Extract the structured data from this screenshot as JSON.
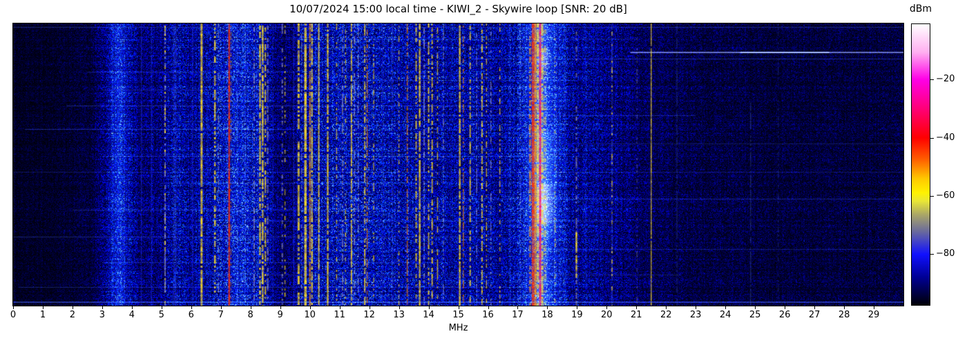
{
  "chart_data": {
    "type": "heatmap",
    "title": "10/07/2024 15:00 local time - KIWI_2 - Skywire loop [SNR: 20 dB]",
    "xlabel": "MHz",
    "x_range": [
      0,
      30
    ],
    "x_ticks": [
      0,
      1,
      2,
      3,
      4,
      5,
      6,
      7,
      8,
      9,
      10,
      11,
      12,
      13,
      14,
      15,
      16,
      17,
      18,
      19,
      20,
      21,
      22,
      23,
      24,
      25,
      26,
      27,
      28,
      29
    ],
    "grid": false,
    "colorbar": {
      "label": "dBm",
      "position": "right",
      "scale_top_dbm": -1,
      "scale_bottom_dbm": -97.5,
      "tick_values": [
        -20,
        -40,
        -60,
        -80
      ],
      "tick_labels": [
        "−20",
        "−40",
        "−60",
        "−80"
      ],
      "gradient_stops": [
        [
          0,
          "#ffffff"
        ],
        [
          3,
          "#ffe6fb"
        ],
        [
          10,
          "#ffaff0"
        ],
        [
          19.7,
          "#ff00e6"
        ],
        [
          30,
          "#ff0078"
        ],
        [
          40.5,
          "#ff0000"
        ],
        [
          48,
          "#ff5c00"
        ],
        [
          55,
          "#ffc800"
        ],
        [
          60,
          "#fff200"
        ],
        [
          63,
          "#e8e636"
        ],
        [
          68,
          "#a8a468"
        ],
        [
          74,
          "#68689e"
        ],
        [
          82,
          "#1010ff"
        ],
        [
          90,
          "#000096"
        ],
        [
          100,
          "#000006"
        ]
      ]
    },
    "signal_palette": {
      "yellow": "#ffdf26",
      "orange": "#ff9000",
      "red": "#ff3000",
      "crimson": "#ff1060",
      "gray": "#a8a8c4",
      "blue": "#2838ee",
      "ltblue": "#5578ff"
    },
    "noise_profile": [
      [
        0,
        0.06
      ],
      [
        1.5,
        0.07
      ],
      [
        2.6,
        0.1
      ],
      [
        3.1,
        0.22
      ],
      [
        3.55,
        0.42
      ],
      [
        3.9,
        0.3
      ],
      [
        4.3,
        0.18
      ],
      [
        5.0,
        0.22
      ],
      [
        5.4,
        0.3
      ],
      [
        6.0,
        0.26
      ],
      [
        6.6,
        0.3
      ],
      [
        7.0,
        0.4
      ],
      [
        7.5,
        0.42
      ],
      [
        8.2,
        0.38
      ],
      [
        8.8,
        0.2
      ],
      [
        9.3,
        0.16
      ],
      [
        9.8,
        0.32
      ],
      [
        10.3,
        0.38
      ],
      [
        11.0,
        0.35
      ],
      [
        11.6,
        0.38
      ],
      [
        12.3,
        0.33
      ],
      [
        13.0,
        0.36
      ],
      [
        13.6,
        0.32
      ],
      [
        14.2,
        0.3
      ],
      [
        14.9,
        0.32
      ],
      [
        15.6,
        0.3
      ],
      [
        16.2,
        0.28
      ],
      [
        16.8,
        0.34
      ],
      [
        17.2,
        0.42
      ],
      [
        17.6,
        0.5
      ],
      [
        18.0,
        0.52
      ],
      [
        18.3,
        0.4
      ],
      [
        18.8,
        0.26
      ],
      [
        19.5,
        0.24
      ],
      [
        20.2,
        0.22
      ],
      [
        20.9,
        0.16
      ],
      [
        21.6,
        0.14
      ],
      [
        22.5,
        0.12
      ],
      [
        24.0,
        0.11
      ],
      [
        26.0,
        0.1
      ],
      [
        28.0,
        0.1
      ],
      [
        30,
        0.1
      ]
    ],
    "glows": [
      {
        "f0": 3.15,
        "f1": 4.0,
        "p": 3.55,
        "col": "#2040ff",
        "a": 0.3,
        "y0": 0,
        "y1": 1
      },
      {
        "f0": 6.9,
        "f1": 8.6,
        "p": 7.5,
        "col": "#1830dd",
        "a": 0.15,
        "y0": 0,
        "y1": 1
      },
      {
        "f0": 17.0,
        "f1": 18.7,
        "p": 17.78,
        "col": "#1e46ff",
        "a": 0.5,
        "y0": 0,
        "y1": 1
      },
      {
        "f0": 17.3,
        "f1": 18.45,
        "p": 17.8,
        "col": "#507fff",
        "a": 0.4,
        "y0": 0.38,
        "y1": 0.76
      },
      {
        "f0": 17.45,
        "f1": 18.05,
        "p": 17.75,
        "col": "#ffbe28",
        "a": 0.2,
        "y0": 0,
        "y1": 1
      },
      {
        "f0": 17.55,
        "f1": 18.3,
        "p": 17.85,
        "col": "#ffd23c",
        "a": 0.4,
        "y0": 0.57,
        "y1": 0.71
      },
      {
        "f0": 17.55,
        "f1": 18.15,
        "p": 17.85,
        "col": "#ffd23c",
        "a": 0.3,
        "y0": 0.09,
        "y1": 0.16
      }
    ],
    "signals": [
      {
        "f": 4.32,
        "c": "blue",
        "w": 1.5,
        "s": 0.95,
        "a": 0.5
      },
      {
        "f": 4.66,
        "c": "blue",
        "w": 1.5,
        "s": 0.9,
        "a": 0.45
      },
      {
        "f": 5.12,
        "c": "gray",
        "w": 2,
        "s": 0.5,
        "a": 0.8
      },
      {
        "f": 5.12,
        "c": "yellow",
        "w": 2,
        "s": 0.2,
        "a": 0.85
      },
      {
        "f": 5.45,
        "c": "ltblue",
        "w": 6,
        "s": 0.9,
        "a": 0.2
      },
      {
        "f": 6.05,
        "c": "blue",
        "w": 1.5,
        "s": 0.95,
        "a": 0.5
      },
      {
        "f": 6.35,
        "c": "yellow",
        "w": 3,
        "s": 0.97,
        "a": 0.95
      },
      {
        "f": 6.55,
        "c": "blue",
        "w": 1.5,
        "s": 0.8,
        "a": 0.4
      },
      {
        "f": 6.8,
        "c": "yellow",
        "w": 2.5,
        "s": 0.55,
        "a": 0.9
      },
      {
        "f": 6.92,
        "c": "gray",
        "w": 1.5,
        "s": 0.4,
        "a": 0.7
      },
      {
        "f": 7.28,
        "c": "red",
        "w": 2.5,
        "s": 1,
        "a": 0.95
      },
      {
        "f": 7.34,
        "c": "orange",
        "w": 1.5,
        "s": 0.45,
        "a": 0.6
      },
      {
        "f": 7.56,
        "c": "blue",
        "w": 1.5,
        "s": 0.75,
        "a": 0.45
      },
      {
        "f": 7.82,
        "c": "ltblue",
        "w": 2,
        "s": 0.6,
        "a": 0.3
      },
      {
        "f": 8.12,
        "c": "gray",
        "w": 2,
        "s": 0.5,
        "a": 0.7
      },
      {
        "f": 8.32,
        "c": "yellow",
        "w": 2.5,
        "s": 0.75,
        "a": 0.9
      },
      {
        "f": 8.41,
        "c": "yellow",
        "w": 2.5,
        "s": 0.85,
        "a": 0.95
      },
      {
        "f": 8.5,
        "c": "yellow",
        "w": 2,
        "s": 0.55,
        "a": 0.9
      },
      {
        "f": 8.58,
        "c": "gray",
        "w": 2,
        "s": 0.5,
        "a": 0.7
      },
      {
        "f": 8.75,
        "c": "blue",
        "w": 1.5,
        "s": 0.75,
        "a": 0.4
      },
      {
        "f": 9.07,
        "c": "gray",
        "w": 2,
        "s": 0.45,
        "a": 0.7
      },
      {
        "f": 9.16,
        "c": "yellow",
        "w": 1.5,
        "s": 0.3,
        "a": 0.85
      },
      {
        "f": 9.45,
        "c": "blue",
        "w": 1.5,
        "s": 0.85,
        "a": 0.5
      },
      {
        "f": 9.62,
        "c": "yellow",
        "w": 3,
        "s": 0.7,
        "a": 0.9
      },
      {
        "f": 9.72,
        "c": "gray",
        "w": 1.5,
        "s": 0.5,
        "a": 0.7
      },
      {
        "f": 9.85,
        "c": "yellow",
        "w": 3.5,
        "s": 0.92,
        "a": 0.95
      },
      {
        "f": 10.0,
        "c": "orange",
        "w": 2,
        "s": 0.9,
        "a": 0.9
      },
      {
        "f": 10.07,
        "c": "yellow",
        "w": 2.5,
        "s": 0.85,
        "a": 0.9
      },
      {
        "f": 10.3,
        "c": "yellow",
        "w": 2,
        "s": 0.9,
        "a": 0.9
      },
      {
        "f": 10.6,
        "c": "yellow",
        "w": 2.5,
        "s": 0.9,
        "a": 0.9
      },
      {
        "f": 10.9,
        "c": "yellow",
        "w": 1.5,
        "s": 0.4,
        "a": 0.85
      },
      {
        "f": 11.1,
        "c": "gray",
        "w": 2,
        "s": 0.55,
        "a": 0.7
      },
      {
        "f": 11.2,
        "c": "yellow",
        "w": 1.5,
        "s": 0.35,
        "a": 0.85
      },
      {
        "f": 11.4,
        "c": "yellow",
        "w": 2,
        "s": 0.8,
        "a": 0.9
      },
      {
        "f": 11.5,
        "c": "gray",
        "w": 2,
        "s": 0.5,
        "a": 0.7
      },
      {
        "f": 11.63,
        "c": "gray",
        "w": 1.5,
        "s": 0.5,
        "a": 0.7
      },
      {
        "f": 11.85,
        "c": "yellow",
        "w": 2,
        "s": 0.6,
        "a": 0.9
      },
      {
        "f": 11.93,
        "c": "orange",
        "w": 1.5,
        "s": 0.7,
        "a": 0.85
      },
      {
        "f": 12.15,
        "c": "yellow",
        "w": 1.5,
        "s": 0.35,
        "a": 0.85
      },
      {
        "f": 12.45,
        "c": "blue",
        "w": 1.5,
        "s": 0.85,
        "a": 0.45
      },
      {
        "f": 12.78,
        "c": "ltblue",
        "w": 3,
        "s": 0.7,
        "a": 0.3
      },
      {
        "f": 13.0,
        "c": "yellow",
        "w": 1.5,
        "s": 0.3,
        "a": 0.8
      },
      {
        "f": 13.28,
        "c": "orange",
        "w": 1.5,
        "s": 0.75,
        "a": 0.85
      },
      {
        "f": 13.58,
        "c": "yellow",
        "w": 2,
        "s": 0.55,
        "a": 0.9
      },
      {
        "f": 13.7,
        "c": "yellow",
        "w": 2.5,
        "s": 0.9,
        "a": 0.9
      },
      {
        "f": 13.85,
        "c": "gray",
        "w": 2,
        "s": 0.5,
        "a": 0.7
      },
      {
        "f": 14.0,
        "c": "yellow",
        "w": 2,
        "s": 0.55,
        "a": 0.9
      },
      {
        "f": 14.12,
        "c": "yellow",
        "w": 2,
        "s": 0.6,
        "a": 0.9
      },
      {
        "f": 14.3,
        "c": "yellow",
        "w": 1.5,
        "s": 0.45,
        "a": 0.85
      },
      {
        "f": 14.5,
        "c": "gray",
        "w": 1.5,
        "s": 0.4,
        "a": 0.7
      },
      {
        "f": 14.75,
        "c": "blue",
        "w": 1.5,
        "s": 0.75,
        "a": 0.4
      },
      {
        "f": 15.05,
        "c": "yellow",
        "w": 2.5,
        "s": 0.85,
        "a": 0.9
      },
      {
        "f": 15.17,
        "c": "orange",
        "w": 1.5,
        "s": 0.6,
        "a": 0.8
      },
      {
        "f": 15.4,
        "c": "yellow",
        "w": 2,
        "s": 0.6,
        "a": 0.9
      },
      {
        "f": 15.62,
        "c": "gray",
        "w": 1.5,
        "s": 0.5,
        "a": 0.7
      },
      {
        "f": 15.8,
        "c": "yellow",
        "w": 2,
        "s": 0.65,
        "a": 0.9
      },
      {
        "f": 15.95,
        "c": "yellow",
        "w": 1.5,
        "s": 0.4,
        "a": 0.85
      },
      {
        "f": 16.1,
        "c": "gray",
        "w": 1.5,
        "s": 0.35,
        "a": 0.7
      },
      {
        "f": 16.4,
        "c": "yellow",
        "w": 1.5,
        "s": 0.45,
        "a": 0.85
      },
      {
        "f": 16.75,
        "c": "blue",
        "w": 1.5,
        "s": 0.7,
        "a": 0.4
      },
      {
        "f": 17.1,
        "c": "ltblue",
        "w": 2,
        "s": 0.6,
        "a": 0.35
      },
      {
        "f": 17.42,
        "c": "orange",
        "w": 3,
        "s": 0.55,
        "a": 0.7
      },
      {
        "f": 17.52,
        "c": "red",
        "w": 4,
        "s": 1,
        "a": 0.95
      },
      {
        "f": 17.6,
        "c": "orange",
        "w": 3,
        "s": 0.95,
        "a": 0.9
      },
      {
        "f": 17.68,
        "c": "yellow",
        "w": 3,
        "s": 0.8,
        "a": 0.85
      },
      {
        "f": 17.76,
        "c": "crimson",
        "w": 3,
        "s": 1,
        "a": 1
      },
      {
        "f": 17.83,
        "c": "yellow",
        "w": 3,
        "s": 0.7,
        "a": 0.8
      },
      {
        "f": 17.92,
        "c": "yellow",
        "w": 4,
        "s": 0.45,
        "a": 0.5
      },
      {
        "f": 18.26,
        "c": "yellow",
        "w": 1.5,
        "s": 0.2,
        "a": 0.8
      },
      {
        "f": 18.6,
        "c": "blue",
        "w": 1.5,
        "s": 0.6,
        "a": 0.4
      },
      {
        "f": 18.98,
        "c": "gray",
        "w": 2,
        "s": 0.5,
        "a": 0.7
      },
      {
        "f": 18.98,
        "c": "yellow",
        "w": 2.5,
        "s": 0.9,
        "a": 0.95,
        "y0": 0.74,
        "y1": 0.9
      },
      {
        "f": 19.3,
        "c": "blue",
        "w": 1.5,
        "s": 0.5,
        "a": 0.35
      },
      {
        "f": 20.18,
        "c": "ltblue",
        "w": 2.5,
        "s": 0.8,
        "a": 0.3
      },
      {
        "f": 20.18,
        "c": "yellow",
        "w": 1.5,
        "s": 0.25,
        "a": 0.85
      },
      {
        "f": 21.02,
        "c": "gray",
        "w": 1.5,
        "s": 0.3,
        "a": 0.4
      },
      {
        "f": 21.5,
        "c": "yellow",
        "w": 1.5,
        "s": 0.97,
        "a": 0.85
      },
      {
        "f": 22.37,
        "c": "ltblue",
        "w": 1.5,
        "s": 0.8,
        "a": 0.3
      },
      {
        "f": 23.2,
        "c": "blue",
        "w": 1,
        "s": 0.3,
        "a": 0.25
      },
      {
        "f": 24.85,
        "c": "ltblue",
        "w": 1.5,
        "s": 0.75,
        "a": 0.35,
        "y0": 0.28
      },
      {
        "f": 25.78,
        "c": "ltblue",
        "w": 1.5,
        "s": 0.5,
        "a": 0.25
      },
      {
        "f": 27.5,
        "c": "blue",
        "w": 1,
        "s": 0.3,
        "a": 0.2
      },
      {
        "f": 29.2,
        "c": "blue",
        "w": 1,
        "s": 0.25,
        "a": 0.2
      }
    ],
    "time_streaks": [
      {
        "y": 0.012,
        "f0": 0,
        "f1": 30,
        "a": 0.3
      },
      {
        "y": 0.055,
        "f0": 9,
        "f1": 21,
        "a": 0.2
      },
      {
        "y": 0.1,
        "f0": 20.8,
        "f1": 30,
        "a": 0.55,
        "c": "w"
      },
      {
        "y": 0.1,
        "f0": 24.5,
        "f1": 27.5,
        "a": 0.35,
        "c": "w"
      },
      {
        "y": 0.125,
        "f0": 15.5,
        "f1": 30,
        "a": 0.3
      },
      {
        "y": 0.17,
        "f0": 2.5,
        "f1": 9.5,
        "a": 0.25
      },
      {
        "y": 0.2,
        "f0": 12,
        "f1": 19,
        "a": 0.2
      },
      {
        "y": 0.235,
        "f0": 3,
        "f1": 12.5,
        "a": 0.25
      },
      {
        "y": 0.29,
        "f0": 1.8,
        "f1": 16.5,
        "a": 0.3
      },
      {
        "y": 0.325,
        "f0": 14,
        "f1": 23,
        "a": 0.25
      },
      {
        "y": 0.375,
        "f0": 0.4,
        "f1": 9.5,
        "a": 0.3
      },
      {
        "y": 0.425,
        "f0": 10,
        "f1": 30,
        "a": 0.2
      },
      {
        "y": 0.47,
        "f0": 3,
        "f1": 17.5,
        "a": 0.25
      },
      {
        "y": 0.525,
        "f0": 0,
        "f1": 30,
        "a": 0.18
      },
      {
        "y": 0.565,
        "f0": 5,
        "f1": 13.5,
        "a": 0.25
      },
      {
        "y": 0.62,
        "f0": 15,
        "f1": 30,
        "a": 0.25
      },
      {
        "y": 0.66,
        "f0": 2,
        "f1": 10.5,
        "a": 0.25
      },
      {
        "y": 0.7,
        "f0": 8,
        "f1": 20.5,
        "a": 0.22
      },
      {
        "y": 0.755,
        "f0": 0,
        "f1": 16.5,
        "a": 0.28
      },
      {
        "y": 0.8,
        "f0": 17.5,
        "f1": 30,
        "a": 0.22
      },
      {
        "y": 0.845,
        "f0": 3,
        "f1": 14.5,
        "a": 0.25
      },
      {
        "y": 0.89,
        "f0": 6,
        "f1": 22.5,
        "a": 0.22
      },
      {
        "y": 0.935,
        "f0": 0.2,
        "f1": 17.5,
        "a": 0.25
      },
      {
        "y": 0.985,
        "f0": 0,
        "f1": 30,
        "a": 0.4
      }
    ]
  }
}
